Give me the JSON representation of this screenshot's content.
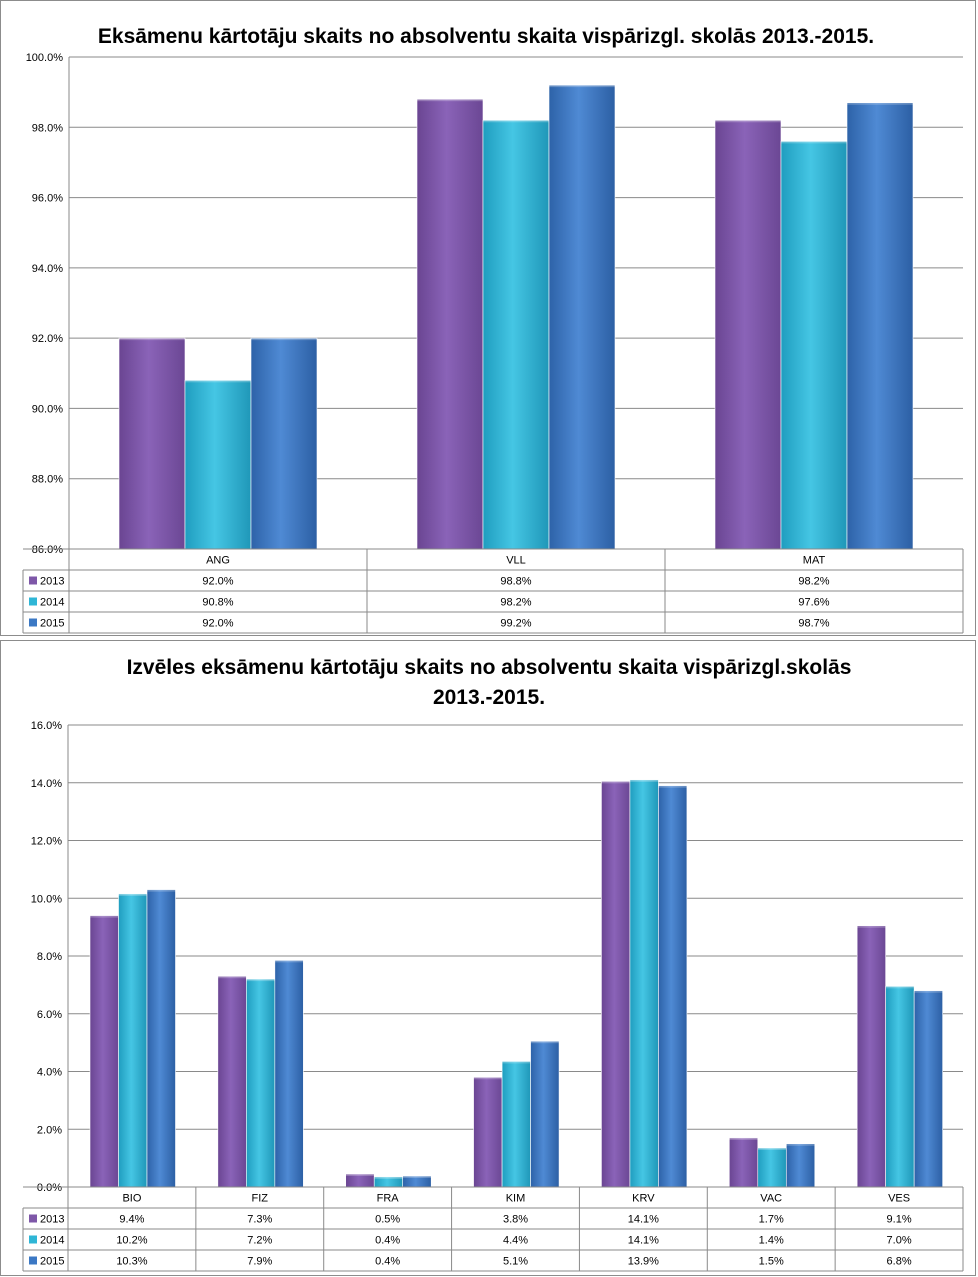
{
  "chart_data": [
    {
      "type": "bar",
      "title": "Eksāmenu kārtotāju skaits no absolventu skaita vispārizgl. skolās 2013.-2015.",
      "categories": [
        "ANG",
        "VLL",
        "MAT"
      ],
      "series": [
        {
          "name": "2013",
          "values": [
            92.0,
            98.8,
            98.2
          ],
          "labels": [
            "92.0%",
            "98.8%",
            "98.2%"
          ]
        },
        {
          "name": "2014",
          "values": [
            90.8,
            98.2,
            97.6
          ],
          "labels": [
            "90.8%",
            "98.2%",
            "97.6%"
          ]
        },
        {
          "name": "2015",
          "values": [
            92.0,
            99.2,
            98.7
          ],
          "labels": [
            "92.0%",
            "99.2%",
            "98.7%"
          ]
        }
      ],
      "ylim": [
        86,
        100
      ],
      "yticks": [
        "86.0%",
        "88.0%",
        "90.0%",
        "92.0%",
        "94.0%",
        "96.0%",
        "98.0%",
        "100.0%"
      ],
      "gridlines": true,
      "legend": "data-table"
    },
    {
      "type": "bar",
      "title": "Izvēles eksāmenu kārtotāju skaits no absolventu skaita vispārizgl.skolās",
      "title_line2": "2013.-2015.",
      "categories": [
        "BIO",
        "FIZ",
        "FRA",
        "KIM",
        "KRV",
        "VAC",
        "VES"
      ],
      "series": [
        {
          "name": "2013",
          "values": [
            9.4,
            7.3,
            0.45,
            3.8,
            14.05,
            1.7,
            9.05
          ],
          "labels": [
            "9.4%",
            "7.3%",
            "0.5%",
            "3.8%",
            "14.1%",
            "1.7%",
            "9.1%"
          ]
        },
        {
          "name": "2014",
          "values": [
            10.15,
            7.2,
            0.35,
            4.35,
            14.1,
            1.35,
            6.95
          ],
          "labels": [
            "10.2%",
            "7.2%",
            "0.4%",
            "4.4%",
            "14.1%",
            "1.4%",
            "7.0%"
          ]
        },
        {
          "name": "2015",
          "values": [
            10.3,
            7.85,
            0.38,
            5.05,
            13.9,
            1.5,
            6.8
          ],
          "labels": [
            "10.3%",
            "7.9%",
            "0.4%",
            "5.1%",
            "13.9%",
            "1.5%",
            "6.8%"
          ]
        }
      ],
      "ylim": [
        0,
        16
      ],
      "yticks": [
        "0.0%",
        "2.0%",
        "4.0%",
        "6.0%",
        "8.0%",
        "10.0%",
        "12.0%",
        "14.0%",
        "16.0%"
      ],
      "gridlines": true,
      "legend": "data-table"
    }
  ],
  "colors": {
    "2013": "#7e57a8",
    "2014": "#2fb6d6",
    "2015": "#3b78c4",
    "gridline": "#8a8a8a",
    "axis_text": "#000000"
  }
}
